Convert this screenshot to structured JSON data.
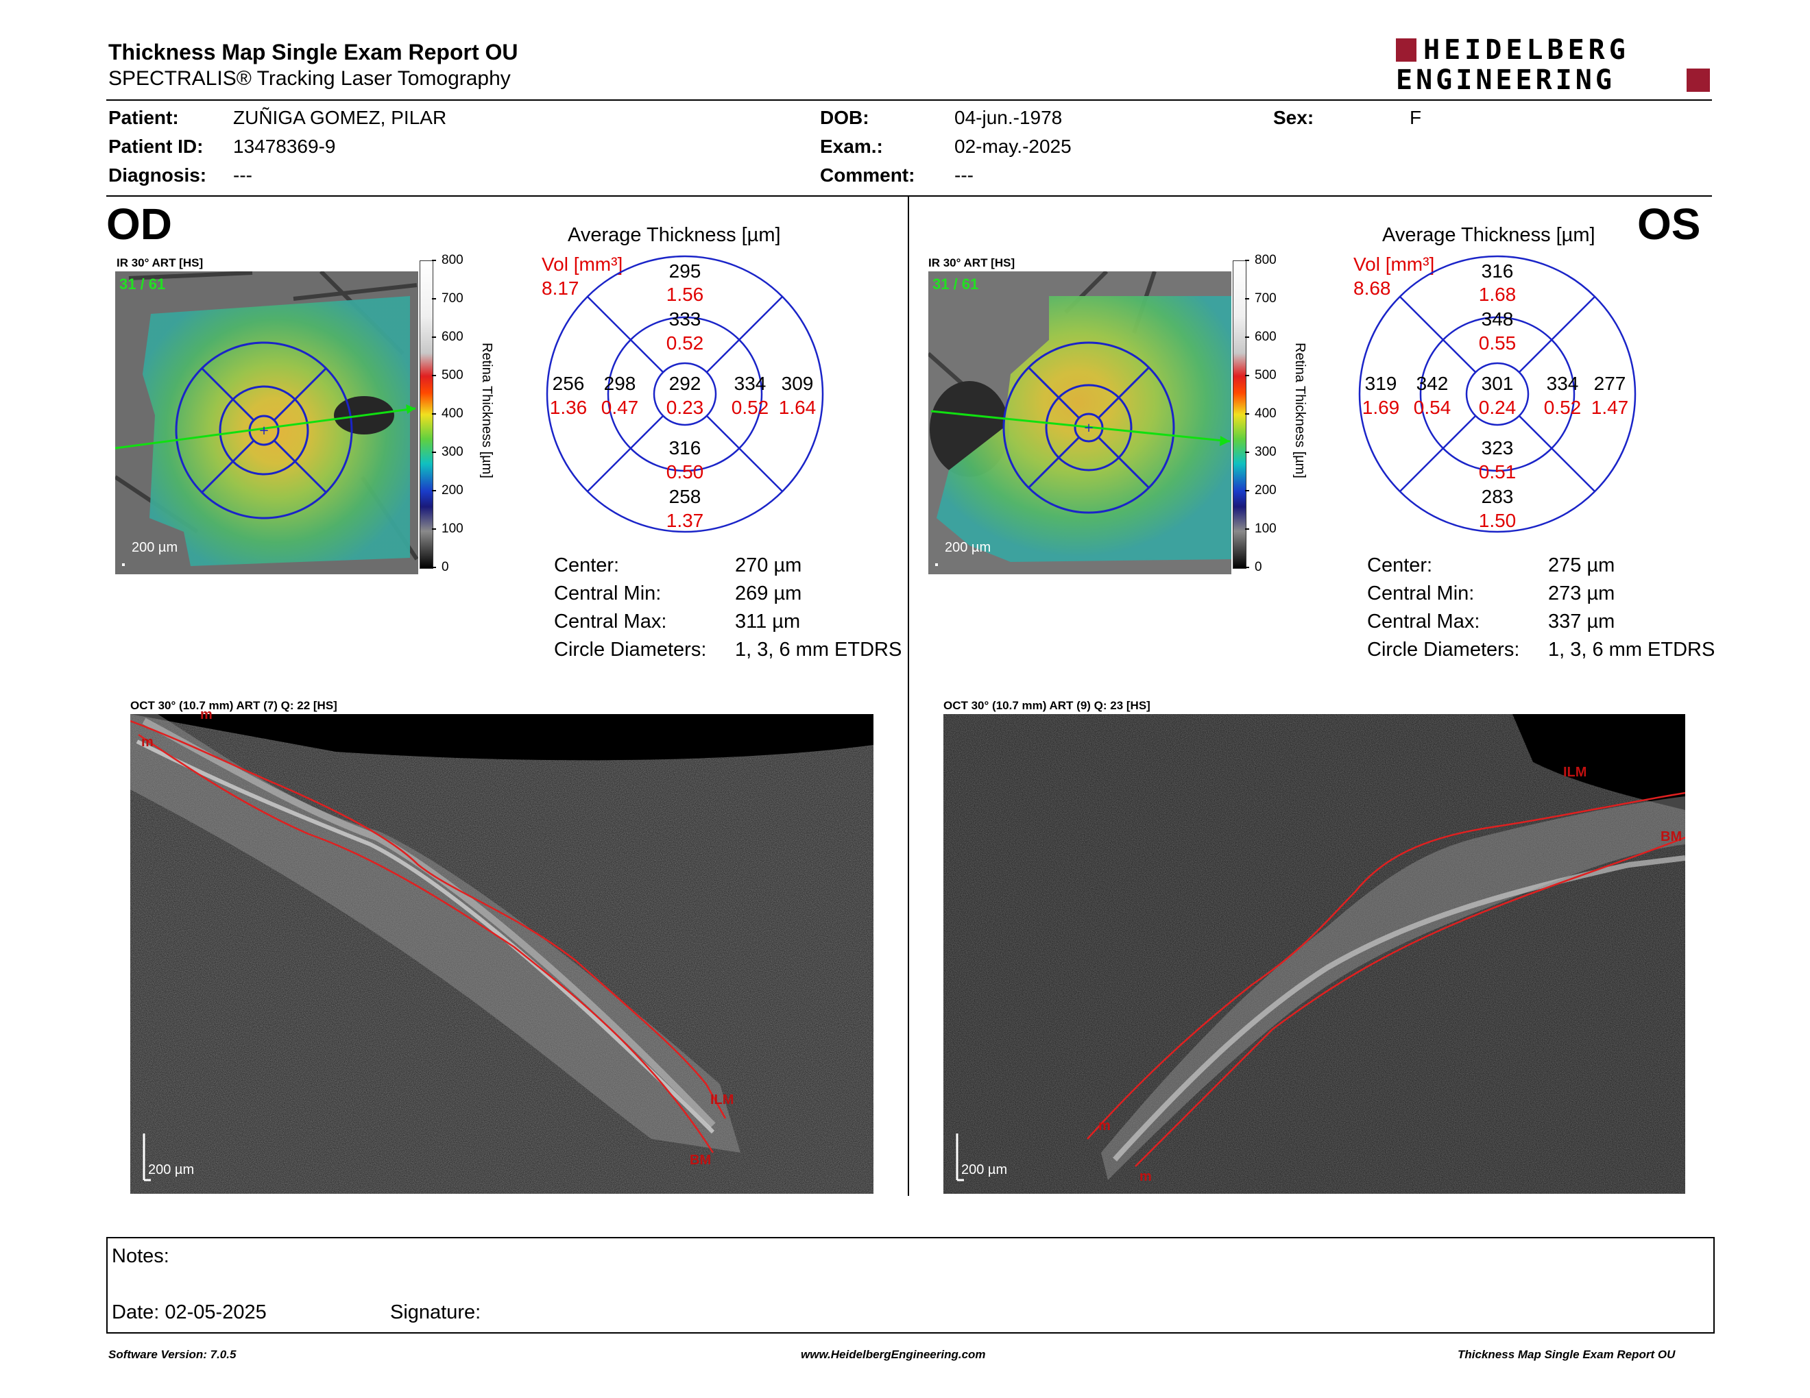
{
  "header": {
    "title": "Thickness Map Single Exam Report OU",
    "subtitle": "SPECTRALIS® Tracking Laser Tomography",
    "logo_line1": "HEIDELBERG",
    "logo_line2": "ENGINEERING",
    "logo_color": "#9b1b30"
  },
  "patient": {
    "patient_label": "Patient:",
    "patient_value": "ZUÑIGA GOMEZ, PILAR",
    "id_label": "Patient ID:",
    "id_value": "13478369-9",
    "diagnosis_label": "Diagnosis:",
    "diagnosis_value": "---",
    "dob_label": "DOB:",
    "dob_value": "04-jun.-1978",
    "exam_label": "Exam.:",
    "exam_value": "02-may.-2025",
    "comment_label": "Comment:",
    "comment_value": "---",
    "sex_label": "Sex:",
    "sex_value": "F"
  },
  "scale": {
    "ticks": [
      "800",
      "700",
      "600",
      "500",
      "400",
      "300",
      "200",
      "100",
      "0"
    ],
    "label": "Retina Thickness [µm]"
  },
  "od": {
    "eye_label": "OD",
    "ir_caption": "IR 30° ART [HS]",
    "frame_count": "31 / 61",
    "ir_scalebar": "200 µm",
    "avg_title": "Average Thickness [µm]",
    "vol_label": "Vol [mm³]",
    "vol_value": "8.17",
    "grid": {
      "outer_sup": "295",
      "outer_sup_vol": "1.56",
      "inner_sup": "333",
      "inner_sup_vol": "0.52",
      "outer_temp": "256",
      "outer_temp_vol": "1.36",
      "inner_temp": "298",
      "inner_temp_vol": "0.47",
      "center": "292",
      "center_vol": "0.23",
      "inner_nas": "334",
      "inner_nas_vol": "0.52",
      "outer_nas": "309",
      "outer_nas_vol": "1.64",
      "inner_inf": "316",
      "inner_inf_vol": "0.50",
      "outer_inf": "258",
      "outer_inf_vol": "1.37"
    },
    "stats": [
      {
        "label": "Center:",
        "value": "270 µm"
      },
      {
        "label": "Central Min:",
        "value": "269 µm"
      },
      {
        "label": "Central Max:",
        "value": "311 µm"
      },
      {
        "label": "Circle Diameters:",
        "value": "1, 3, 6 mm ETDRS"
      }
    ],
    "oct_caption": "OCT 30° (10.7 mm) ART (7) Q: 22 [HS]",
    "oct_scalebar": "200 µm",
    "oct_labels": {
      "ilm": "ILM",
      "bm": "BM",
      "m1": "m",
      "m2": "m"
    }
  },
  "os": {
    "eye_label": "OS",
    "ir_caption": "IR 30° ART [HS]",
    "frame_count": "31 / 61",
    "ir_scalebar": "200 µm",
    "avg_title": "Average Thickness [µm]",
    "vol_label": "Vol [mm³]",
    "vol_value": "8.68",
    "grid": {
      "outer_sup": "316",
      "outer_sup_vol": "1.68",
      "inner_sup": "348",
      "inner_sup_vol": "0.55",
      "outer_temp": "319",
      "outer_temp_vol": "1.69",
      "inner_temp": "342",
      "inner_temp_vol": "0.54",
      "center": "301",
      "center_vol": "0.24",
      "inner_nas": "334",
      "inner_nas_vol": "0.52",
      "outer_nas": "277",
      "outer_nas_vol": "1.47",
      "inner_inf": "323",
      "inner_inf_vol": "0.51",
      "outer_inf": "283",
      "outer_inf_vol": "1.50"
    },
    "stats": [
      {
        "label": "Center:",
        "value": "275 µm"
      },
      {
        "label": "Central Min:",
        "value": "273 µm"
      },
      {
        "label": "Central Max:",
        "value": "337 µm"
      },
      {
        "label": "Circle Diameters:",
        "value": "1, 3, 6 mm ETDRS"
      }
    ],
    "oct_caption": "OCT 30° (10.7 mm) ART (9) Q: 23 [HS]",
    "oct_scalebar": "200 µm",
    "oct_labels": {
      "ilm": "ILM",
      "bm": "BM",
      "m1": "m",
      "m2": "m"
    }
  },
  "notes": {
    "notes_label": "Notes:",
    "date_label": "Date: 02-05-2025",
    "signature_label": "Signature:"
  },
  "footer": {
    "version": "Software Version: 7.0.5",
    "url": "www.HeidelbergEngineering.com",
    "report": "Thickness Map Single Exam Report OU"
  }
}
